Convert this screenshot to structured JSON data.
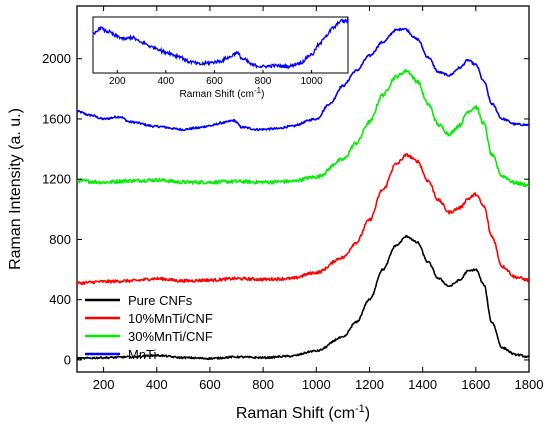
{
  "chart_data": [
    {
      "type": "line",
      "xlabel": "Raman Shift (cm",
      "xlabel_sup": "-1",
      "xlabel_tail": ")",
      "ylabel": "Raman Intensity (a. u.)",
      "xlim": [
        100,
        1800
      ],
      "ylim": [
        -80,
        2350
      ],
      "xticks": [
        200,
        400,
        600,
        800,
        1000,
        1200,
        1400,
        1600,
        1800
      ],
      "yticks": [
        0,
        400,
        800,
        1200,
        1600,
        2000
      ],
      "grid": false,
      "legend_position": "bottom-left",
      "series": [
        {
          "name": "Pure CNFs",
          "color": "#000000",
          "noise": 6,
          "x": [
            100,
            200,
            300,
            400,
            500,
            600,
            700,
            800,
            900,
            1000,
            1100,
            1150,
            1200,
            1250,
            1300,
            1340,
            1380,
            1420,
            1460,
            1500,
            1540,
            1570,
            1600,
            1630,
            1660,
            1700,
            1750,
            1800
          ],
          "y": [
            10,
            15,
            20,
            30,
            15,
            10,
            20,
            15,
            25,
            60,
            150,
            250,
            400,
            600,
            760,
            820,
            780,
            650,
            540,
            490,
            530,
            590,
            600,
            500,
            250,
            80,
            35,
            20
          ]
        },
        {
          "name": "10%MnTi/CNF",
          "color": "#ff0000",
          "noise": 10,
          "x": [
            100,
            200,
            300,
            400,
            500,
            600,
            700,
            800,
            900,
            1000,
            1100,
            1150,
            1200,
            1250,
            1300,
            1340,
            1380,
            1420,
            1460,
            1500,
            1540,
            1570,
            1600,
            1630,
            1660,
            1700,
            1750,
            1800
          ],
          "y": [
            510,
            520,
            525,
            540,
            525,
            530,
            540,
            535,
            540,
            580,
            680,
            780,
            930,
            1130,
            1300,
            1360,
            1320,
            1190,
            1060,
            980,
            1010,
            1070,
            1100,
            1020,
            820,
            620,
            550,
            530
          ]
        },
        {
          "name": "30%MnTi/CNF",
          "color": "#00ee00",
          "noise": 12,
          "x": [
            100,
            200,
            300,
            400,
            500,
            600,
            700,
            800,
            900,
            1000,
            1100,
            1150,
            1200,
            1250,
            1300,
            1340,
            1380,
            1420,
            1460,
            1500,
            1540,
            1570,
            1600,
            1630,
            1660,
            1700,
            1750,
            1800
          ],
          "y": [
            1190,
            1180,
            1190,
            1195,
            1180,
            1180,
            1185,
            1180,
            1185,
            1215,
            1330,
            1440,
            1580,
            1760,
            1880,
            1920,
            1850,
            1700,
            1560,
            1500,
            1560,
            1650,
            1680,
            1570,
            1360,
            1220,
            1175,
            1160
          ]
        },
        {
          "name": "MnTi",
          "color": "#0000ff",
          "noise": 7,
          "x": [
            100,
            150,
            200,
            260,
            300,
            400,
            500,
            550,
            600,
            650,
            690,
            720,
            780,
            850,
            900,
            1000,
            1050,
            1100,
            1150,
            1200,
            1250,
            1300,
            1330,
            1380,
            1420,
            1460,
            1500,
            1540,
            1570,
            1600,
            1630,
            1660,
            1700,
            1750,
            1800
          ],
          "y": [
            1650,
            1625,
            1600,
            1615,
            1580,
            1550,
            1530,
            1540,
            1555,
            1575,
            1590,
            1545,
            1530,
            1535,
            1550,
            1600,
            1700,
            1820,
            1920,
            2020,
            2110,
            2190,
            2200,
            2130,
            2010,
            1910,
            1890,
            1940,
            1990,
            1960,
            1850,
            1700,
            1600,
            1565,
            1560
          ]
        }
      ]
    },
    {
      "type": "line",
      "role": "inset",
      "xlabel": "Raman Shift (cm",
      "xlabel_sup": "-1",
      "xlabel_tail": ")",
      "ylabel": "",
      "xlim": [
        100,
        1150
      ],
      "ylim": [
        0,
        1
      ],
      "xticks": [
        200,
        400,
        600,
        800,
        1000
      ],
      "grid": false,
      "series": [
        {
          "color": "#0000ff",
          "noise": 0.035,
          "x": [
            100,
            130,
            160,
            200,
            230,
            260,
            300,
            350,
            400,
            450,
            500,
            540,
            580,
            620,
            660,
            690,
            720,
            760,
            800,
            850,
            900,
            950,
            1000,
            1030,
            1060,
            1090,
            1120
          ],
          "y": [
            0.72,
            0.85,
            0.78,
            0.68,
            0.62,
            0.66,
            0.55,
            0.45,
            0.35,
            0.27,
            0.15,
            0.1,
            0.13,
            0.16,
            0.24,
            0.34,
            0.2,
            0.08,
            0.05,
            0.07,
            0.05,
            0.12,
            0.3,
            0.5,
            0.7,
            0.86,
            1.0
          ]
        }
      ]
    }
  ]
}
